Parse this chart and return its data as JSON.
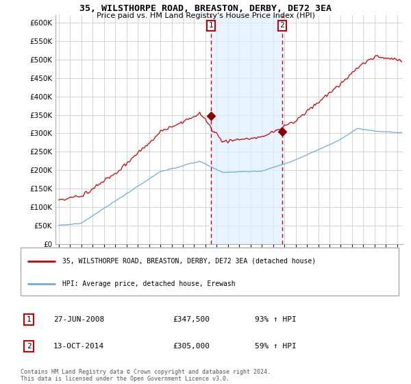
{
  "title": "35, WILSTHORPE ROAD, BREASTON, DERBY, DE72 3EA",
  "subtitle": "Price paid vs. HM Land Registry's House Price Index (HPI)",
  "legend_line1": "35, WILSTHORPE ROAD, BREASTON, DERBY, DE72 3EA (detached house)",
  "legend_line2": "HPI: Average price, detached house, Erewash",
  "annotation1_label": "1",
  "annotation1_date": "27-JUN-2008",
  "annotation1_price": "£347,500",
  "annotation1_hpi": "93% ↑ HPI",
  "annotation2_label": "2",
  "annotation2_date": "13-OCT-2014",
  "annotation2_price": "£305,000",
  "annotation2_hpi": "59% ↑ HPI",
  "footer": "Contains HM Land Registry data © Crown copyright and database right 2024.\nThis data is licensed under the Open Government Licence v3.0.",
  "sale1_x": 2008.5,
  "sale1_y": 347500,
  "sale2_x": 2014.79,
  "sale2_y": 305000,
  "hpi_color": "#6baed6",
  "price_color": "#cc0000",
  "vline_color": "#cc0000",
  "shade_color": "#ddeeff",
  "ylim": [
    0,
    620000
  ],
  "xlim_start": 1994.7,
  "xlim_end": 2025.5,
  "background_color": "#ffffff",
  "grid_color": "#cccccc"
}
